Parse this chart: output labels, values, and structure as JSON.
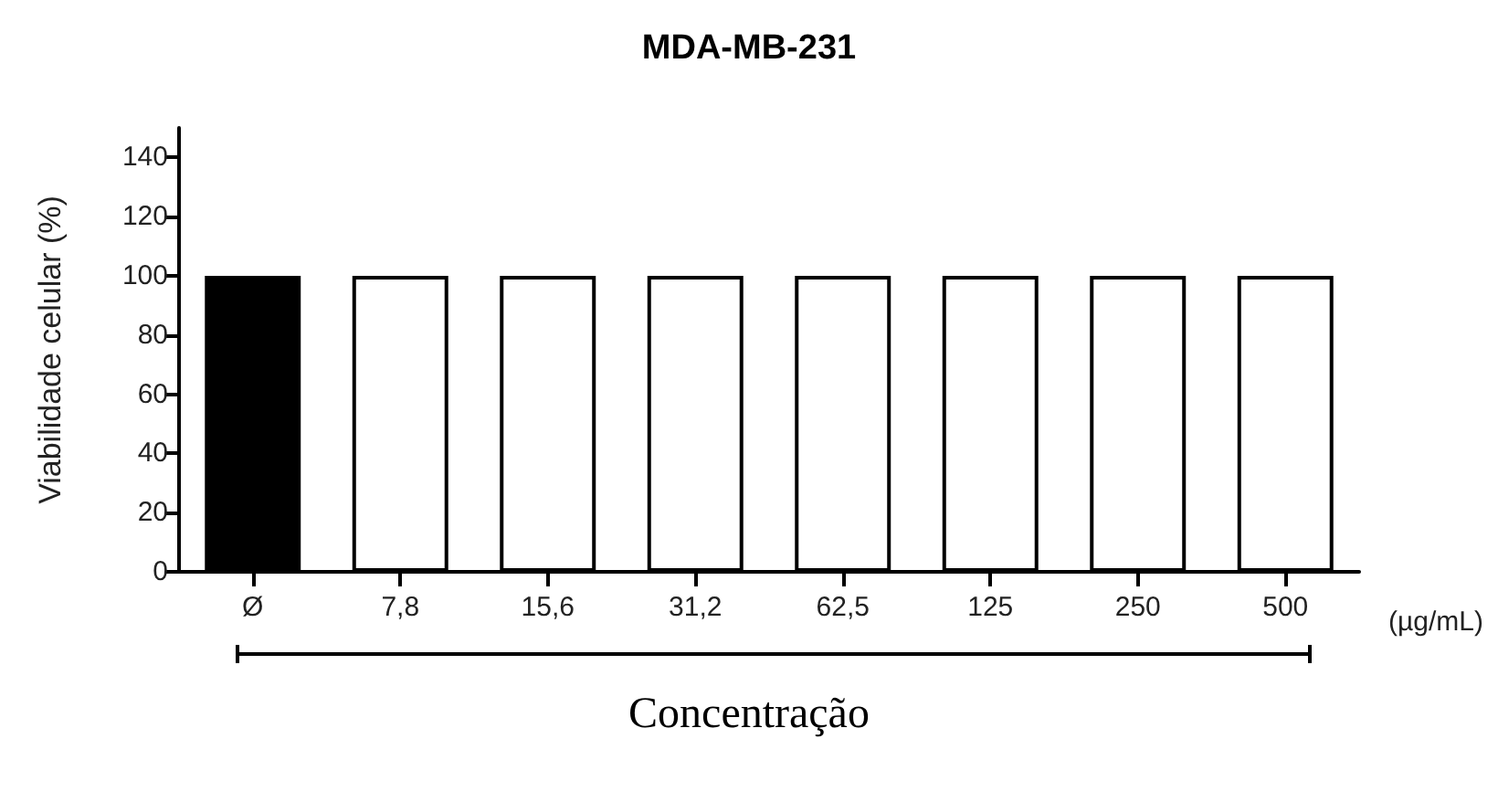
{
  "chart_data": {
    "type": "bar",
    "title": "MDA-MB-231",
    "xlabel": "Concentração",
    "ylabel": "Viabilidade celular (%)",
    "categories": [
      "Ø",
      "7,8",
      "15,6",
      "31,2",
      "62,5",
      "125",
      "250",
      "500"
    ],
    "values": [
      100,
      100,
      100,
      100,
      100,
      100,
      100,
      100
    ],
    "colors": [
      "#000000",
      "#ffffff",
      "#ffffff",
      "#ffffff",
      "#ffffff",
      "#ffffff",
      "#ffffff",
      "#ffffff"
    ],
    "ylim": [
      0,
      150
    ],
    "yticks": [
      0,
      20,
      40,
      60,
      80,
      100,
      120,
      140
    ],
    "annotations": [
      "(µg/mL)"
    ]
  }
}
